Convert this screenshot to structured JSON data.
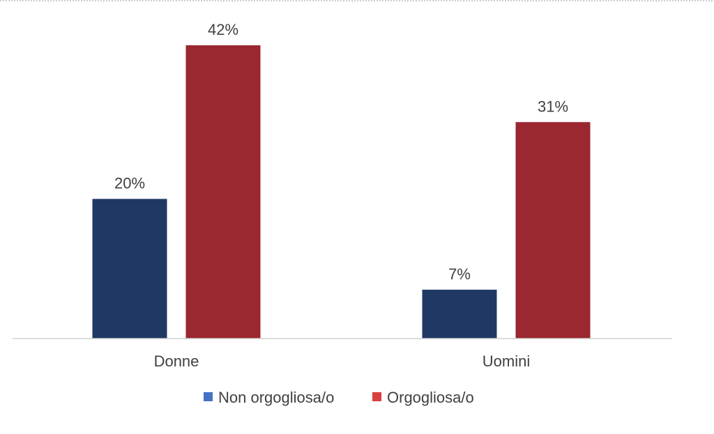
{
  "chart_data": {
    "type": "bar",
    "categories": [
      "Donne",
      "Uomini"
    ],
    "series": [
      {
        "name": "Non orgogliosa/o",
        "values": [
          20,
          7
        ],
        "labels": [
          "20%",
          "7%"
        ],
        "color": "#203864"
      },
      {
        "name": "Orgogliosa/o",
        "values": [
          42,
          31
        ],
        "labels": [
          "42%",
          "31%"
        ],
        "color": "#9B2730"
      }
    ],
    "unit": "%",
    "ylim": [
      0,
      42
    ],
    "title": "",
    "xlabel": "",
    "ylabel": "",
    "grid": false,
    "legend_position": "bottom",
    "legend_marker_colors": [
      "#4472C4",
      "#D9413F"
    ]
  }
}
